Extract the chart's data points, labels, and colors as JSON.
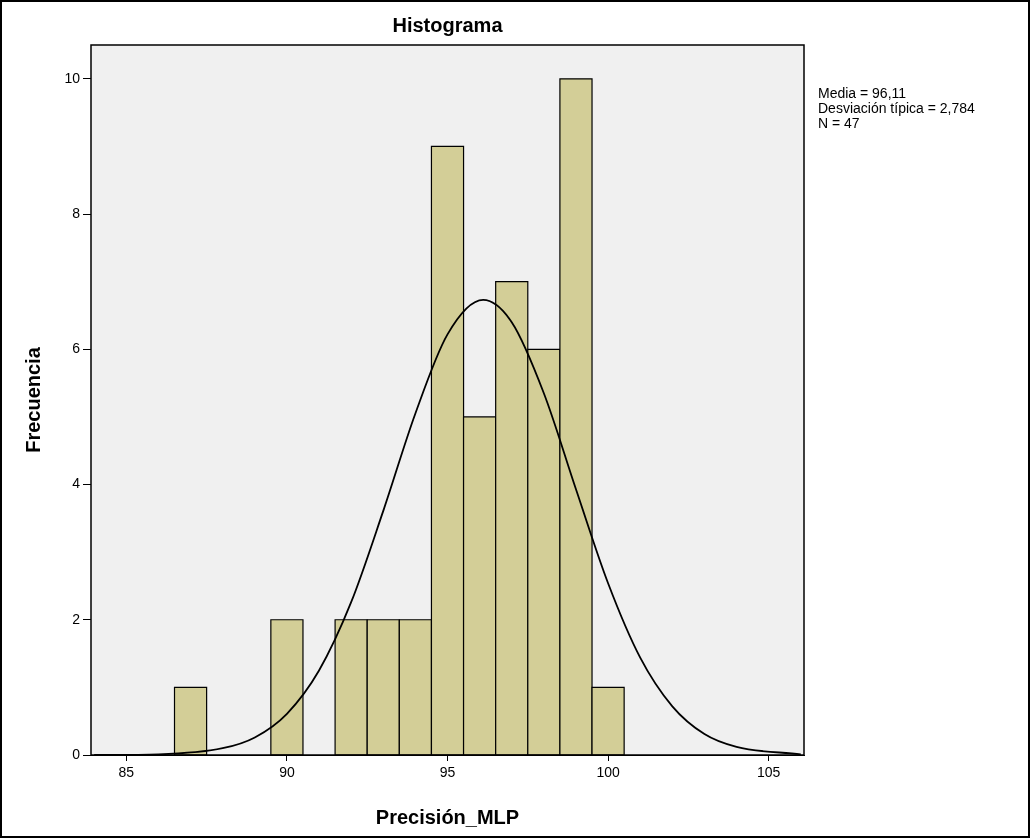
{
  "chart_data": {
    "type": "histogram",
    "title": "Histograma",
    "xlabel": "Precisión_MLP",
    "ylabel": "Frecuencia",
    "bins": [
      86.5,
      87.5,
      88.5,
      89.5,
      90.5,
      91.5,
      92.5,
      93.5,
      94.5,
      95.5,
      96.5,
      97.5,
      98.5,
      99.5,
      100.5
    ],
    "values": [
      1,
      0,
      0,
      2,
      0,
      2,
      2,
      2,
      9,
      5,
      7,
      6,
      10,
      1
    ],
    "color": "#d3ce97",
    "series": [
      {
        "type": "line",
        "color": "#000000",
        "x": [
          84,
          86,
          88,
          89,
          90,
          91,
          92,
          93,
          94,
          95,
          96.11,
          97,
          98,
          99,
          100,
          101,
          102,
          103,
          104,
          106
        ],
        "values": [
          0,
          0.01,
          0.1,
          0.26,
          0.61,
          1.25,
          2.26,
          3.61,
          5.05,
          6.22,
          6.73,
          6.4,
          5.35,
          3.93,
          2.54,
          1.44,
          0.72,
          0.31,
          0.12,
          0.01
        ]
      }
    ],
    "xlim": [
      83.9,
      106.1
    ],
    "xticks": [
      85,
      90,
      95,
      100,
      105
    ],
    "ylim": [
      0,
      10.5
    ],
    "yticks": [
      0,
      2,
      4,
      6,
      8,
      10
    ],
    "marker": "none",
    "legend": false,
    "annotations": [
      "Media = 96,11",
      "Desviación típica = 2,784",
      "N = 47"
    ]
  }
}
